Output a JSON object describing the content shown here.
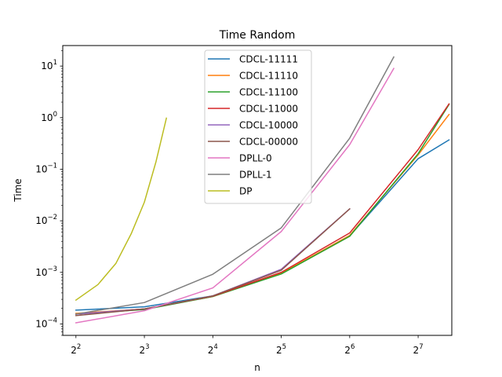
{
  "chart_data": {
    "type": "line",
    "title": "Time Random",
    "xlabel": "n",
    "ylabel": "Time",
    "x_scale": "log2",
    "y_scale": "log10",
    "xlim": [
      3.5,
      180
    ],
    "ylim": [
      6e-05,
      25
    ],
    "x_ticks": [
      {
        "value": 4,
        "base": "2",
        "exp": "2"
      },
      {
        "value": 8,
        "base": "2",
        "exp": "3"
      },
      {
        "value": 16,
        "base": "2",
        "exp": "4"
      },
      {
        "value": 32,
        "base": "2",
        "exp": "5"
      },
      {
        "value": 64,
        "base": "2",
        "exp": "6"
      },
      {
        "value": 128,
        "base": "2",
        "exp": "7"
      }
    ],
    "y_ticks": [
      {
        "value": 0.0001,
        "base": "10",
        "exp": "−4"
      },
      {
        "value": 0.001,
        "base": "10",
        "exp": "−3"
      },
      {
        "value": 0.01,
        "base": "10",
        "exp": "−2"
      },
      {
        "value": 0.1,
        "base": "10",
        "exp": "−1"
      },
      {
        "value": 1,
        "base": "10",
        "exp": "0"
      },
      {
        "value": 10,
        "base": "10",
        "exp": "1"
      }
    ],
    "grid": false,
    "legend_position": "upper center",
    "series": [
      {
        "name": "CDCL-11111",
        "color": "#1f77b4",
        "points": [
          [
            4,
            0.000185
          ],
          [
            8,
            0.000215
          ],
          [
            16,
            0.00035
          ],
          [
            32,
            0.00095
          ],
          [
            64,
            0.0051
          ],
          [
            128,
            0.16
          ],
          [
            175,
            0.37
          ]
        ]
      },
      {
        "name": "CDCL-11110",
        "color": "#ff7f0e",
        "points": [
          [
            4,
            0.00016
          ],
          [
            8,
            0.000195
          ],
          [
            16,
            0.00034
          ],
          [
            32,
            0.00096
          ],
          [
            64,
            0.0052
          ],
          [
            128,
            0.19
          ],
          [
            175,
            1.15
          ]
        ]
      },
      {
        "name": "CDCL-11100",
        "color": "#2ca02c",
        "points": [
          [
            4,
            0.000155
          ],
          [
            8,
            0.00019
          ],
          [
            16,
            0.00034
          ],
          [
            32,
            0.00093
          ],
          [
            64,
            0.005
          ],
          [
            128,
            0.2
          ],
          [
            175,
            1.8
          ]
        ]
      },
      {
        "name": "CDCL-11000",
        "color": "#d62728",
        "points": [
          [
            4,
            0.000155
          ],
          [
            8,
            0.000195
          ],
          [
            16,
            0.000345
          ],
          [
            32,
            0.001
          ],
          [
            64,
            0.0058
          ],
          [
            128,
            0.24
          ],
          [
            175,
            1.85
          ]
        ]
      },
      {
        "name": "CDCL-10000",
        "color": "#9467bd",
        "points": [
          [
            4,
            0.000155
          ],
          [
            8,
            0.000195
          ],
          [
            16,
            0.00035
          ],
          [
            32,
            0.00115
          ],
          [
            64,
            0.017
          ]
        ]
      },
      {
        "name": "CDCL-00000",
        "color": "#8c564b",
        "points": [
          [
            4,
            0.000145
          ],
          [
            8,
            0.000195
          ],
          [
            16,
            0.00035
          ],
          [
            32,
            0.0011
          ],
          [
            64,
            0.017
          ]
        ]
      },
      {
        "name": "DPLL-0",
        "color": "#e377c2",
        "points": [
          [
            4,
            0.000105
          ],
          [
            8,
            0.00018
          ],
          [
            16,
            0.0005
          ],
          [
            32,
            0.0062
          ],
          [
            64,
            0.3
          ],
          [
            100,
            9.0
          ]
        ]
      },
      {
        "name": "DPLL-1",
        "color": "#7f7f7f",
        "points": [
          [
            4,
            0.000155
          ],
          [
            8,
            0.00026
          ],
          [
            16,
            0.00092
          ],
          [
            32,
            0.0073
          ],
          [
            64,
            0.4
          ],
          [
            100,
            15.0
          ]
        ]
      },
      {
        "name": "DP",
        "color": "#bcbd22",
        "points": [
          [
            4,
            0.00029
          ],
          [
            5,
            0.00058
          ],
          [
            6,
            0.0015
          ],
          [
            7,
            0.0056
          ],
          [
            8,
            0.023
          ],
          [
            9,
            0.14
          ],
          [
            10,
            0.98
          ]
        ]
      }
    ]
  }
}
